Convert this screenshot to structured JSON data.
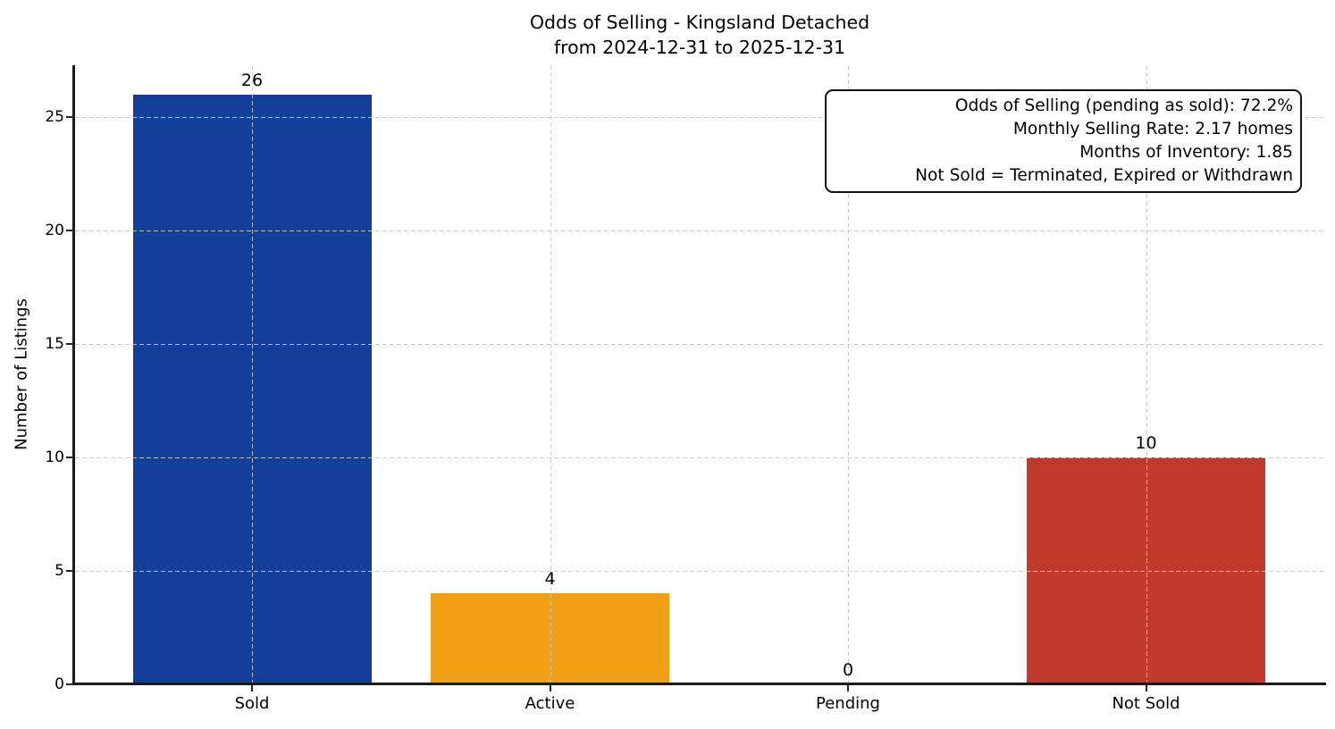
{
  "chart_data": {
    "type": "bar",
    "title": "Odds of Selling - Kingsland Detached",
    "subtitle": "from 2024-12-31 to 2025-12-31",
    "categories": [
      "Sold",
      "Active",
      "Pending",
      "Not Sold"
    ],
    "values": [
      26,
      4,
      0,
      10
    ],
    "value_labels": [
      "26",
      "4",
      "0",
      "10"
    ],
    "bar_colors": [
      "#123E9A",
      "#F2A013",
      null,
      "#C23A2C"
    ],
    "xlabel": "",
    "ylabel": "Number of Listings",
    "yticks": [
      0,
      5,
      10,
      15,
      20,
      25
    ],
    "ylim": [
      0,
      27.3
    ],
    "grid": {
      "style": "dashed",
      "axis": "both",
      "color": "#c9c9c9",
      "above_bars": true
    },
    "legend": "none",
    "annotation_box": {
      "position": "top-right",
      "text_align": "right",
      "lines": [
        "Odds of Selling (pending as sold): 72.2%",
        "Monthly Selling Rate: 2.17 homes",
        "Months of Inventory: 1.85",
        "Not Sold = Terminated, Expired or Withdrawn"
      ]
    }
  }
}
